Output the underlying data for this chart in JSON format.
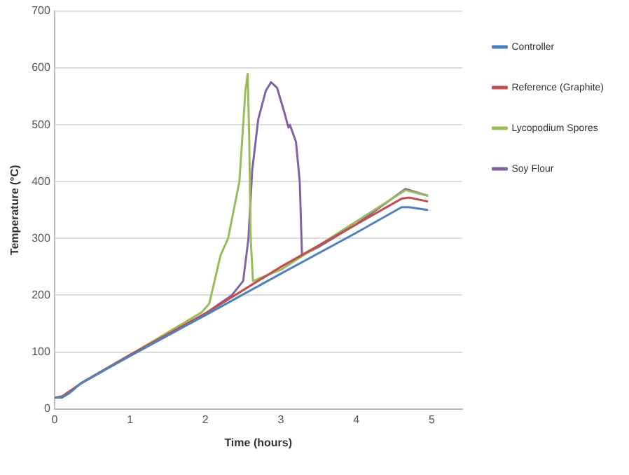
{
  "chart_data": {
    "type": "line",
    "xlabel": "Time (hours)",
    "ylabel": "Temperature (°C)",
    "xlim": [
      0,
      5.4
    ],
    "xticks": [
      0,
      1,
      2,
      3,
      4,
      5
    ],
    "ylim": [
      0,
      700
    ],
    "yticks": [
      0,
      100,
      200,
      300,
      400,
      500,
      600,
      700
    ],
    "grid": "y",
    "legend": "right",
    "marker": "none",
    "series": [
      {
        "name": "Controller",
        "color": "#4f81bd",
        "x": [
          0,
          0.1,
          0.2,
          0.35,
          1,
          2,
          3,
          4,
          4.6,
          4.7,
          4.95
        ],
        "values": [
          20,
          20,
          28,
          45,
          93,
          165,
          238,
          310,
          355,
          355,
          350
        ]
      },
      {
        "name": "Reference (Graphite)",
        "color": "#c0504d",
        "x": [
          0,
          0.1,
          0.35,
          1,
          2,
          3,
          4,
          4.6,
          4.7,
          4.95
        ],
        "values": [
          20,
          22,
          45,
          95,
          168,
          250,
          325,
          370,
          372,
          365
        ]
      },
      {
        "name": "Lycopodium Spores",
        "color": "#9bbb59",
        "x": [
          0.35,
          1,
          1.95,
          2.05,
          2.2,
          2.3,
          2.45,
          2.53,
          2.56,
          2.58,
          2.6,
          2.63,
          3,
          4,
          4.65,
          4.95
        ],
        "values": [
          45,
          95,
          170,
          185,
          270,
          300,
          400,
          560,
          590,
          480,
          300,
          225,
          245,
          330,
          385,
          375
        ]
      },
      {
        "name": "Soy Flour",
        "color": "#8064a2",
        "x": [
          0,
          0.1,
          0.35,
          1,
          2,
          2.35,
          2.5,
          2.57,
          2.62,
          2.7,
          2.8,
          2.87,
          2.95,
          3.05,
          3.1,
          3.12,
          3.2,
          3.25,
          3.28,
          3.5,
          4,
          4.65,
          4.95
        ],
        "values": [
          20,
          20,
          45,
          95,
          168,
          200,
          225,
          300,
          420,
          510,
          560,
          575,
          565,
          520,
          495,
          500,
          470,
          400,
          270,
          285,
          325,
          387,
          375
        ]
      }
    ]
  }
}
